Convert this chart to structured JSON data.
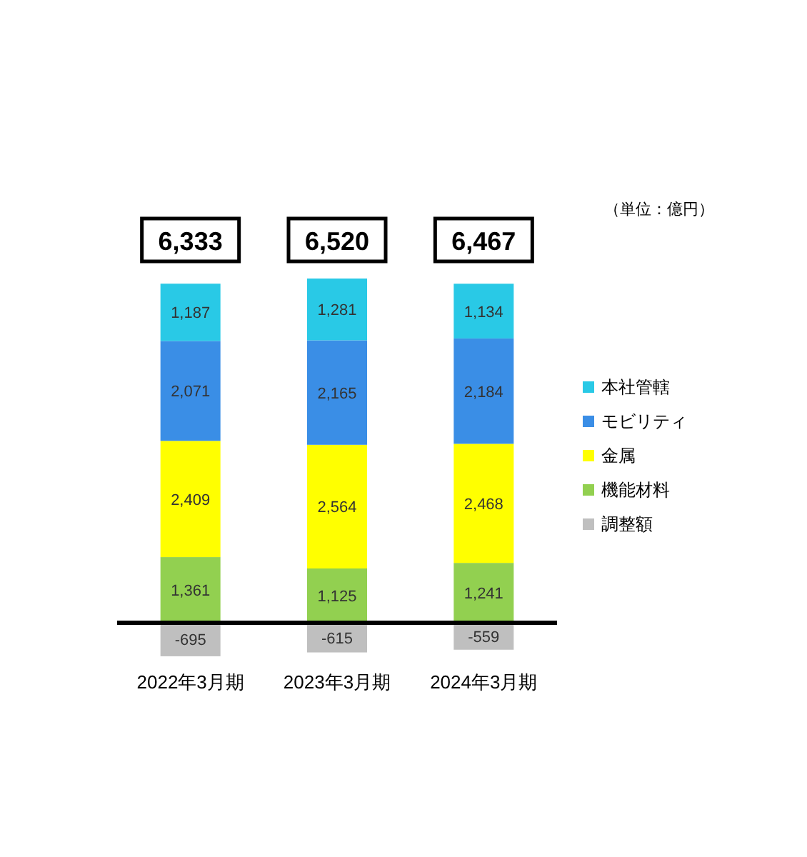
{
  "chart_data": {
    "type": "bar",
    "stacked": true,
    "categories": [
      "2022年3月期",
      "2023年3月期",
      "2024年3月期"
    ],
    "series": [
      {
        "name": "機能材料",
        "color": "#92d050",
        "values": [
          1361,
          1125,
          1241
        ],
        "value_labels": [
          "1,361",
          "1,125",
          "1,241"
        ]
      },
      {
        "name": "金属",
        "color": "#ffff00",
        "values": [
          2409,
          2564,
          2468
        ],
        "value_labels": [
          "2,409",
          "2,564",
          "2,468"
        ]
      },
      {
        "name": "モビリティ",
        "color": "#3a8ee6",
        "values": [
          2071,
          2165,
          2184
        ],
        "value_labels": [
          "2,071",
          "2,165",
          "2,184"
        ]
      },
      {
        "name": "本社管轄",
        "color": "#29c9e6",
        "values": [
          1187,
          1281,
          1134
        ],
        "value_labels": [
          "1,187",
          "1,281",
          "1,134"
        ]
      },
      {
        "name": "調整額",
        "color": "#bfbfbf",
        "values": [
          -695,
          -615,
          -559
        ],
        "value_labels": [
          "-695",
          "-615",
          "-559"
        ]
      }
    ],
    "totals": [
      "6,333",
      "6,520",
      "6,467"
    ],
    "annotations": [
      "（単位：億円）"
    ],
    "legend": "right"
  }
}
